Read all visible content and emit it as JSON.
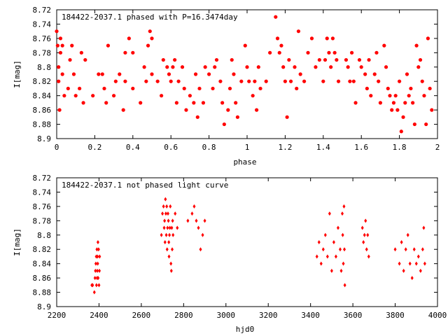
{
  "chart_data": [
    {
      "type": "scatter",
      "title": "184422-2037.1 phased with P=16.3474day",
      "xlabel": "phase",
      "ylabel": "I[mag]",
      "xlim": [
        0,
        2
      ],
      "ylim": [
        8.72,
        8.9
      ],
      "y_inverted": true,
      "grid": false,
      "marker_color": "#ff0000",
      "marker_style": "filled-circle",
      "x_ticks": [
        "0",
        "0.2",
        "0.4",
        "0.6",
        "0.8",
        "1",
        "1.2",
        "1.4",
        "1.6",
        "1.8",
        "2"
      ],
      "y_ticks": [
        "8.72",
        "8.74",
        "8.76",
        "8.78",
        "8.8",
        "8.82",
        "8.84",
        "8.86",
        "8.88",
        "8.9"
      ],
      "points": [
        [
          0.0,
          8.75
        ],
        [
          0.005,
          8.77
        ],
        [
          0.01,
          8.8
        ],
        [
          0.01,
          8.82
        ],
        [
          0.02,
          8.76
        ],
        [
          0.015,
          8.86
        ],
        [
          0.02,
          8.78
        ],
        [
          0.03,
          8.81
        ],
        [
          0.03,
          8.77
        ],
        [
          0.04,
          8.84
        ],
        [
          0.06,
          8.83
        ],
        [
          0.07,
          8.79
        ],
        [
          0.08,
          8.77
        ],
        [
          0.09,
          8.81
        ],
        [
          0.1,
          8.84
        ],
        [
          0.12,
          8.83
        ],
        [
          0.13,
          8.78
        ],
        [
          0.15,
          8.79
        ],
        [
          0.14,
          8.85
        ],
        [
          0.19,
          8.84
        ],
        [
          0.22,
          8.81
        ],
        [
          0.24,
          8.81
        ],
        [
          0.25,
          8.83
        ],
        [
          0.26,
          8.85
        ],
        [
          0.27,
          8.77
        ],
        [
          0.3,
          8.84
        ],
        [
          0.31,
          8.82
        ],
        [
          0.33,
          8.81
        ],
        [
          0.35,
          8.86
        ],
        [
          0.36,
          8.82
        ],
        [
          0.36,
          8.78
        ],
        [
          0.38,
          8.76
        ],
        [
          0.4,
          8.78
        ],
        [
          0.4,
          8.83
        ],
        [
          0.44,
          8.85
        ],
        [
          0.46,
          8.8
        ],
        [
          0.47,
          8.82
        ],
        [
          0.48,
          8.77
        ],
        [
          0.49,
          8.75
        ],
        [
          0.5,
          8.76
        ],
        [
          0.5,
          8.81
        ],
        [
          0.53,
          8.82
        ],
        [
          0.55,
          8.84
        ],
        [
          0.56,
          8.79
        ],
        [
          0.58,
          8.8
        ],
        [
          0.59,
          8.81
        ],
        [
          0.6,
          8.82
        ],
        [
          0.61,
          8.8
        ],
        [
          0.62,
          8.79
        ],
        [
          0.63,
          8.85
        ],
        [
          0.64,
          8.82
        ],
        [
          0.66,
          8.8
        ],
        [
          0.67,
          8.83
        ],
        [
          0.68,
          8.86
        ],
        [
          0.7,
          8.84
        ],
        [
          0.72,
          8.85
        ],
        [
          0.73,
          8.81
        ],
        [
          0.74,
          8.87
        ],
        [
          0.75,
          8.83
        ],
        [
          0.77,
          8.85
        ],
        [
          0.78,
          8.8
        ],
        [
          0.8,
          8.81
        ],
        [
          0.82,
          8.83
        ],
        [
          0.83,
          8.8
        ],
        [
          0.84,
          8.79
        ],
        [
          0.86,
          8.82
        ],
        [
          0.87,
          8.85
        ],
        [
          0.88,
          8.88
        ],
        [
          0.9,
          8.86
        ],
        [
          0.91,
          8.83
        ],
        [
          0.92,
          8.79
        ],
        [
          0.93,
          8.81
        ],
        [
          0.94,
          8.85
        ],
        [
          0.95,
          8.87
        ],
        [
          0.97,
          8.82
        ],
        [
          0.99,
          8.77
        ],
        [
          1.0,
          8.8
        ],
        [
          1.01,
          8.82
        ],
        [
          1.03,
          8.84
        ],
        [
          1.04,
          8.82
        ],
        [
          1.05,
          8.86
        ],
        [
          1.06,
          8.8
        ],
        [
          1.07,
          8.83
        ],
        [
          1.1,
          8.82
        ],
        [
          1.12,
          8.78
        ],
        [
          1.15,
          8.73
        ],
        [
          1.16,
          8.76
        ],
        [
          1.17,
          8.78
        ],
        [
          1.18,
          8.77
        ],
        [
          1.19,
          8.8
        ],
        [
          1.2,
          8.82
        ],
        [
          1.21,
          8.87
        ],
        [
          1.22,
          8.79
        ],
        [
          1.23,
          8.82
        ],
        [
          1.25,
          8.8
        ],
        [
          1.26,
          8.83
        ],
        [
          1.27,
          8.75
        ],
        [
          1.28,
          8.81
        ],
        [
          1.3,
          8.82
        ],
        [
          1.32,
          8.78
        ],
        [
          1.34,
          8.76
        ],
        [
          1.36,
          8.8
        ],
        [
          1.38,
          8.79
        ],
        [
          1.4,
          8.82
        ],
        [
          1.41,
          8.79
        ],
        [
          1.42,
          8.76
        ],
        [
          1.43,
          8.78
        ],
        [
          1.44,
          8.8
        ],
        [
          1.45,
          8.76
        ],
        [
          1.46,
          8.78
        ],
        [
          1.47,
          8.79
        ],
        [
          1.48,
          8.82
        ],
        [
          1.52,
          8.79
        ],
        [
          1.53,
          8.8
        ],
        [
          1.54,
          8.82
        ],
        [
          1.55,
          8.78
        ],
        [
          1.56,
          8.82
        ],
        [
          1.57,
          8.85
        ],
        [
          1.59,
          8.79
        ],
        [
          1.6,
          8.8
        ],
        [
          1.62,
          8.81
        ],
        [
          1.63,
          8.83
        ],
        [
          1.64,
          8.79
        ],
        [
          1.65,
          8.84
        ],
        [
          1.67,
          8.81
        ],
        [
          1.68,
          8.78
        ],
        [
          1.69,
          8.82
        ],
        [
          1.7,
          8.85
        ],
        [
          1.72,
          8.77
        ],
        [
          1.73,
          8.8
        ],
        [
          1.74,
          8.83
        ],
        [
          1.75,
          8.84
        ],
        [
          1.76,
          8.86
        ],
        [
          1.77,
          8.85
        ],
        [
          1.78,
          8.84
        ],
        [
          1.79,
          8.86
        ],
        [
          1.8,
          8.82
        ],
        [
          1.81,
          8.89
        ],
        [
          1.82,
          8.87
        ],
        [
          1.83,
          8.85
        ],
        [
          1.84,
          8.81
        ],
        [
          1.85,
          8.84
        ],
        [
          1.86,
          8.83
        ],
        [
          1.87,
          8.85
        ],
        [
          1.88,
          8.88
        ],
        [
          1.89,
          8.77
        ],
        [
          1.9,
          8.8
        ],
        [
          1.91,
          8.79
        ],
        [
          1.92,
          8.82
        ],
        [
          1.93,
          8.84
        ],
        [
          1.94,
          8.88
        ],
        [
          1.95,
          8.76
        ],
        [
          1.96,
          8.83
        ],
        [
          1.97,
          8.86
        ]
      ]
    },
    {
      "type": "scatter",
      "title": "184422-2037.1 not phased light curve",
      "xlabel": "hjd0",
      "ylabel": "I[mag]",
      "xlim": [
        2200,
        4000
      ],
      "ylim": [
        8.72,
        8.9
      ],
      "y_inverted": true,
      "grid": false,
      "marker_color": "#ff0000",
      "marker_style": "filled-diamond",
      "x_ticks": [
        "2200",
        "2400",
        "2600",
        "2800",
        "3000",
        "3200",
        "3400",
        "3600",
        "3800",
        "4000"
      ],
      "y_ticks": [
        "8.72",
        "8.74",
        "8.76",
        "8.78",
        "8.8",
        "8.82",
        "8.84",
        "8.86",
        "8.88",
        "8.9"
      ],
      "points": [
        [
          2366,
          8.87
        ],
        [
          2370,
          8.87
        ],
        [
          2378,
          8.88
        ],
        [
          2381,
          8.86
        ],
        [
          2383,
          8.85
        ],
        [
          2385,
          8.84
        ],
        [
          2387,
          8.83
        ],
        [
          2388,
          8.87
        ],
        [
          2390,
          8.82
        ],
        [
          2391,
          8.86
        ],
        [
          2392,
          8.85
        ],
        [
          2393,
          8.83
        ],
        [
          2394,
          8.84
        ],
        [
          2395,
          8.81
        ],
        [
          2396,
          8.86
        ],
        [
          2398,
          8.82
        ],
        [
          2400,
          8.87
        ],
        [
          2402,
          8.85
        ],
        [
          2403,
          8.83
        ],
        [
          2695,
          8.8
        ],
        [
          2700,
          8.77
        ],
        [
          2705,
          8.76
        ],
        [
          2708,
          8.79
        ],
        [
          2710,
          8.78
        ],
        [
          2712,
          8.81
        ],
        [
          2714,
          8.75
        ],
        [
          2716,
          8.77
        ],
        [
          2718,
          8.8
        ],
        [
          2720,
          8.76
        ],
        [
          2722,
          8.82
        ],
        [
          2724,
          8.79
        ],
        [
          2726,
          8.77
        ],
        [
          2728,
          8.78
        ],
        [
          2730,
          8.81
        ],
        [
          2731,
          8.83
        ],
        [
          2733,
          8.8
        ],
        [
          2735,
          8.79
        ],
        [
          2737,
          8.76
        ],
        [
          2740,
          8.84
        ],
        [
          2742,
          8.85
        ],
        [
          2744,
          8.79
        ],
        [
          2746,
          8.82
        ],
        [
          2748,
          8.78
        ],
        [
          2750,
          8.8
        ],
        [
          2760,
          8.77
        ],
        [
          2770,
          8.79
        ],
        [
          2820,
          8.78
        ],
        [
          2840,
          8.77
        ],
        [
          2850,
          8.76
        ],
        [
          2860,
          8.78
        ],
        [
          2870,
          8.79
        ],
        [
          2880,
          8.82
        ],
        [
          2890,
          8.8
        ],
        [
          2900,
          8.78
        ],
        [
          3430,
          8.83
        ],
        [
          3440,
          8.81
        ],
        [
          3450,
          8.84
        ],
        [
          3460,
          8.82
        ],
        [
          3470,
          8.8
        ],
        [
          3480,
          8.83
        ],
        [
          3490,
          8.77
        ],
        [
          3500,
          8.85
        ],
        [
          3510,
          8.81
        ],
        [
          3520,
          8.83
        ],
        [
          3530,
          8.79
        ],
        [
          3540,
          8.82
        ],
        [
          3545,
          8.85
        ],
        [
          3550,
          8.77
        ],
        [
          3552,
          8.8
        ],
        [
          3555,
          8.84
        ],
        [
          3558,
          8.76
        ],
        [
          3560,
          8.82
        ],
        [
          3562,
          8.87
        ],
        [
          3645,
          8.79
        ],
        [
          3650,
          8.81
        ],
        [
          3655,
          8.8
        ],
        [
          3660,
          8.78
        ],
        [
          3665,
          8.82
        ],
        [
          3670,
          8.8
        ],
        [
          3675,
          8.83
        ],
        [
          3800,
          8.82
        ],
        [
          3820,
          8.84
        ],
        [
          3830,
          8.81
        ],
        [
          3840,
          8.85
        ],
        [
          3850,
          8.82
        ],
        [
          3860,
          8.8
        ],
        [
          3870,
          8.84
        ],
        [
          3880,
          8.86
        ],
        [
          3890,
          8.82
        ],
        [
          3900,
          8.84
        ],
        [
          3910,
          8.83
        ],
        [
          3920,
          8.85
        ],
        [
          3930,
          8.82
        ],
        [
          3935,
          8.79
        ],
        [
          3940,
          8.84
        ]
      ]
    }
  ]
}
